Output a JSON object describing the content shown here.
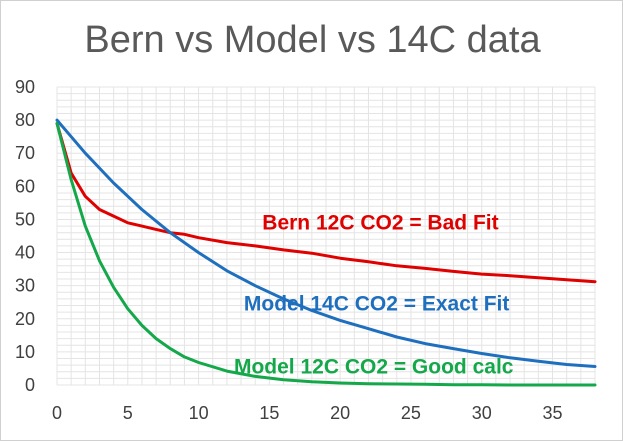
{
  "chart_data": {
    "type": "line",
    "title": "Bern vs Model vs 14C data",
    "xlabel": "",
    "ylabel": "",
    "xlim": [
      0,
      38
    ],
    "ylim": [
      0,
      90
    ],
    "x_ticks": [
      0,
      5,
      10,
      15,
      20,
      25,
      30,
      35
    ],
    "y_ticks": [
      0,
      10,
      20,
      30,
      40,
      50,
      60,
      70,
      80,
      90
    ],
    "grid": true,
    "series": [
      {
        "name": "Bern 12C CO2 = Bad Fit",
        "color": "#e00000",
        "x": [
          0,
          1,
          2,
          3,
          4,
          5,
          6,
          7,
          8,
          9,
          10,
          12,
          14,
          16,
          18,
          20,
          22,
          24,
          26,
          28,
          30,
          32,
          34,
          36,
          38
        ],
        "y": [
          79,
          64,
          57,
          53,
          51,
          49,
          48,
          47,
          46,
          45.5,
          44.5,
          43,
          42,
          40.8,
          39.8,
          38.3,
          37.2,
          36,
          35.2,
          34.3,
          33.5,
          33,
          32.4,
          31.8,
          31.2
        ]
      },
      {
        "name": "Model 14C CO2 = Exact Fit",
        "color": "#1f6fbf",
        "x": [
          0,
          1,
          2,
          3,
          4,
          5,
          6,
          7,
          8,
          10,
          12,
          14,
          16,
          18,
          20,
          22,
          24,
          26,
          28,
          30,
          32,
          34,
          36,
          38
        ],
        "y": [
          80,
          75,
          70,
          65.5,
          61,
          57,
          53,
          49.5,
          46,
          40,
          34.5,
          30,
          26,
          22.5,
          19.5,
          17,
          14.5,
          12.5,
          11,
          9.5,
          8.2,
          7.2,
          6.2,
          5.6
        ]
      },
      {
        "name": "Model 12C CO2 = Good calc",
        "color": "#14a84b",
        "x": [
          0,
          1,
          2,
          3,
          4,
          5,
          6,
          7,
          8,
          9,
          10,
          12,
          14,
          16,
          18,
          20,
          22,
          24,
          26,
          28,
          30,
          32,
          34,
          36,
          38
        ],
        "y": [
          79,
          62,
          48,
          37.5,
          29.5,
          23,
          18,
          14,
          11,
          8.5,
          6.8,
          4.2,
          2.6,
          1.6,
          1,
          0.6,
          0.4,
          0.3,
          0.2,
          0.1,
          0.1,
          0,
          0,
          0,
          0
        ]
      }
    ],
    "annotations": [
      {
        "text": "Bern 12C CO2 = Bad Fit",
        "color": "#e00000"
      },
      {
        "text": "Model 14C CO2 = Exact Fit",
        "color": "#1f6fbf"
      },
      {
        "text": "Model 12C CO2 = Good calc",
        "color": "#14a84b"
      }
    ]
  }
}
